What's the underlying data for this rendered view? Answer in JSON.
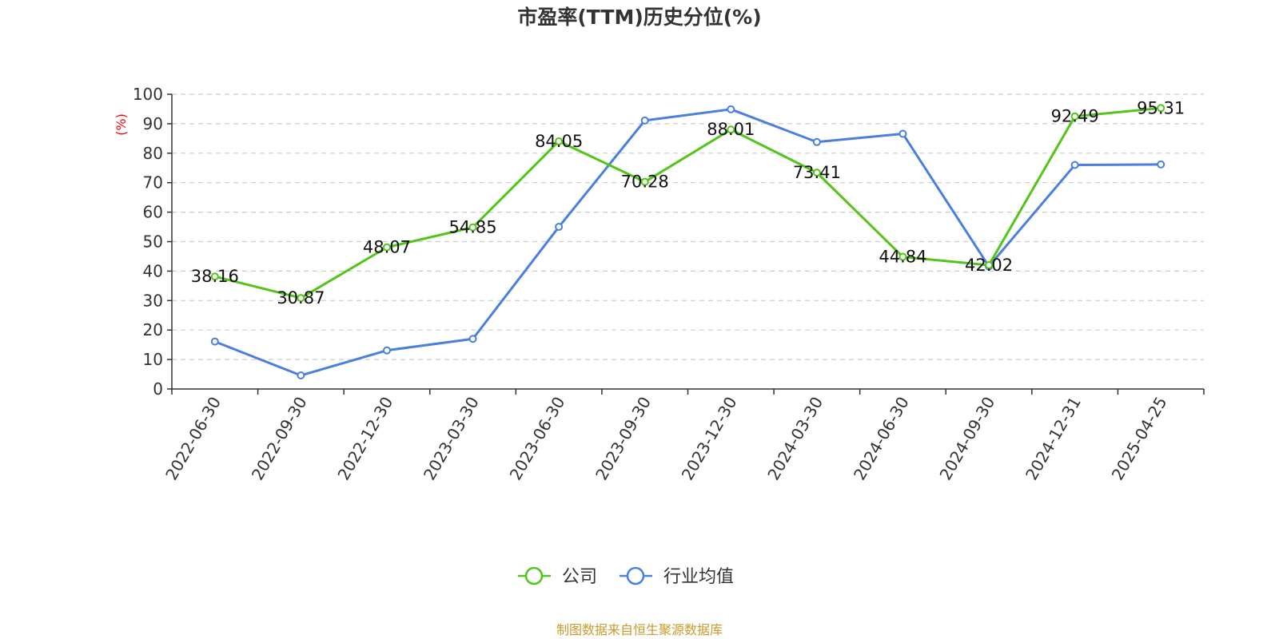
{
  "chart_data": {
    "type": "line",
    "title": "市盈率(TTM)历史分位(%)",
    "y_unit_label": "(%)",
    "categories": [
      "2022-06-30",
      "2022-09-30",
      "2022-12-30",
      "2023-03-30",
      "2023-06-30",
      "2023-09-30",
      "2023-12-30",
      "2024-03-30",
      "2024-06-30",
      "2024-09-30",
      "2024-12-31",
      "2025-04-25"
    ],
    "y_ticks": [
      "0",
      "10",
      "20",
      "30",
      "40",
      "50",
      "60",
      "70",
      "80",
      "90",
      "100"
    ],
    "ylim": [
      0,
      100
    ],
    "grid": true,
    "legend_position": "bottom-center",
    "series": [
      {
        "name": "公司",
        "color": "#52c41a",
        "values": [
          38.16,
          30.87,
          48.07,
          54.85,
          84.05,
          70.28,
          88.01,
          73.41,
          44.84,
          42.02,
          92.49,
          95.31
        ],
        "labels": [
          "38.16",
          "30.87",
          "48.07",
          "54.85",
          "84.05",
          "70.28",
          "88.01",
          "73.41",
          "44.84",
          "42.02",
          "92.49",
          "95.31"
        ]
      },
      {
        "name": "行业均值",
        "color": "#4a7fe0",
        "values": [
          16.1,
          4.6,
          13.1,
          17.0,
          55.0,
          91.1,
          94.9,
          83.8,
          86.6,
          41.6,
          76.0,
          76.2
        ]
      }
    ],
    "source": "制图数据来自恒生聚源数据库"
  }
}
